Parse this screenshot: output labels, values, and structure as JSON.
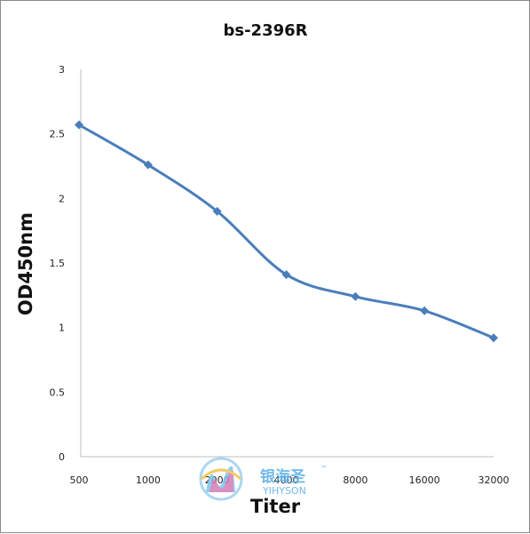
{
  "chart_data": {
    "type": "line",
    "title": "bs-2396R",
    "xlabel": "Titer",
    "ylabel": "OD450nm",
    "categories": [
      "500",
      "1000",
      "2000",
      "4000",
      "8000",
      "16000",
      "32000"
    ],
    "values": [
      2.57,
      2.26,
      1.9,
      1.41,
      1.24,
      1.13,
      0.92
    ],
    "ylim": [
      0,
      3
    ],
    "yticks": [
      "0",
      "0.5",
      "1",
      "1.5",
      "2",
      "2.5",
      "3"
    ],
    "grid": false,
    "series_color": "#4a7ebb"
  },
  "watermark": {
    "chinese": "银海圣",
    "trademark": "™",
    "latin": "YIHYSON"
  }
}
